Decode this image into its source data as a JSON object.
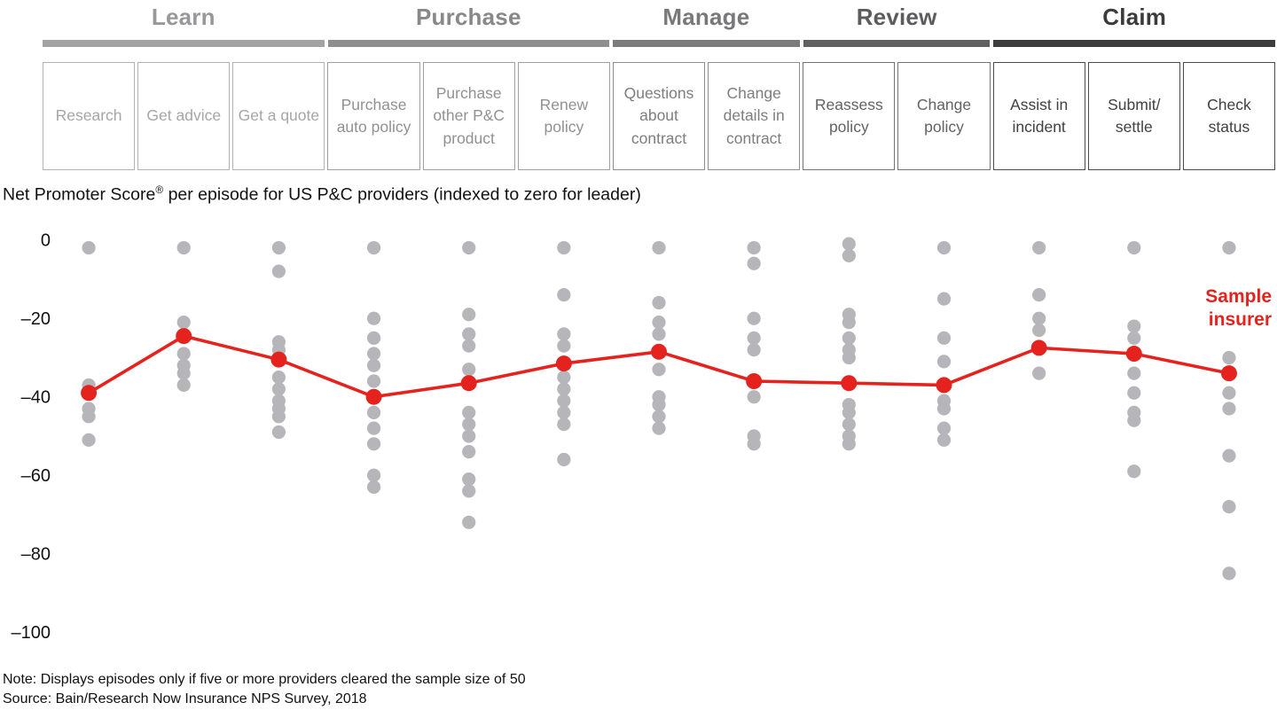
{
  "header": {
    "stages": [
      {
        "label": "Learn",
        "episode_count": 3,
        "label_color": "#98989b",
        "bar_color": "#a2a2a5",
        "box_text_color": "#a6a6a9",
        "box_border_color": "#b2b2b4"
      },
      {
        "label": "Purchase",
        "episode_count": 3,
        "label_color": "#88888b",
        "bar_color": "#8e8e91",
        "box_text_color": "#919194",
        "box_border_color": "#a0a0a3"
      },
      {
        "label": "Manage",
        "episode_count": 2,
        "label_color": "#78787b",
        "bar_color": "#7b7b7e",
        "box_text_color": "#7e7e81",
        "box_border_color": "#8e8e91"
      },
      {
        "label": "Review",
        "episode_count": 2,
        "label_color": "#5c5c5f",
        "bar_color": "#606063",
        "box_text_color": "#636366",
        "box_border_color": "#737376"
      },
      {
        "label": "Claim",
        "episode_count": 3,
        "label_color": "#3b3b3d",
        "bar_color": "#3d3d3f",
        "box_text_color": "#414143",
        "box_border_color": "#4b4b4d"
      }
    ]
  },
  "title": {
    "pre": "Net Promoter Score",
    "sup": "®",
    "post": " per episode for US P&C providers (indexed to zero for leader)"
  },
  "annotation": {
    "line1": "Sample",
    "line2": "insurer",
    "color": "#e4231f"
  },
  "colors": {
    "sample_red": "#e4231f",
    "provider_gray": "#b6b6ba"
  },
  "notes": {
    "note": "Note: Displays episodes only if five or more providers cleared the sample size of 50",
    "source": "Source: Bain/Research Now Insurance NPS Survey, 2018"
  },
  "chart_data": {
    "type": "scatter",
    "title": "Net Promoter Score® per episode for US P&C providers (indexed to zero for leader)",
    "xlabel": "",
    "ylabel": "",
    "ylim": [
      -100,
      0
    ],
    "yticks": [
      0,
      -20,
      -40,
      -60,
      -80,
      -100
    ],
    "ytick_labels": [
      "0",
      "–20",
      "–40",
      "–60",
      "–80",
      "–100"
    ],
    "grid": false,
    "legend_position": "right-annotation",
    "categories": [
      "Research",
      "Get advice",
      "Get a quote",
      "Purchase auto policy",
      "Purchase other P&C product",
      "Renew policy",
      "Questions about contract",
      "Change details in contract",
      "Reassess policy",
      "Change policy",
      "Assist in incident",
      "Submit/ settle",
      "Check status"
    ],
    "stage_of_category": [
      "Learn",
      "Learn",
      "Learn",
      "Purchase",
      "Purchase",
      "Purchase",
      "Manage",
      "Manage",
      "Review",
      "Review",
      "Claim",
      "Claim",
      "Claim"
    ],
    "provider_dots": [
      [
        -2,
        -37,
        -43,
        -45,
        -51
      ],
      [
        -2,
        -21,
        -29,
        -32,
        -34,
        -37
      ],
      [
        -2,
        -8,
        -26,
        -28,
        -35,
        -38,
        -41,
        -43,
        -45,
        -49
      ],
      [
        -2,
        -20,
        -25,
        -29,
        -32,
        -36,
        -44,
        -48,
        -52,
        -60,
        -63
      ],
      [
        -2,
        -19,
        -24,
        -27,
        -33,
        -44,
        -47,
        -50,
        -54,
        -61,
        -64,
        -72
      ],
      [
        -2,
        -14,
        -24,
        -27,
        -35,
        -38,
        -41,
        -44,
        -47,
        -56
      ],
      [
        -2,
        -16,
        -21,
        -24,
        -33,
        -40,
        -42,
        -45,
        -48
      ],
      [
        -2,
        -6,
        -20,
        -25,
        -28,
        -40,
        -50,
        -52
      ],
      [
        -1,
        -4,
        -19,
        -21,
        -25,
        -28,
        -30,
        -42,
        -44,
        -47,
        -50,
        -52
      ],
      [
        -2,
        -15,
        -25,
        -31,
        -41,
        -43,
        -48,
        -51
      ],
      [
        -2,
        -14,
        -20,
        -23,
        -34
      ],
      [
        -2,
        -22,
        -25,
        -34,
        -39,
        -44,
        -46,
        -59
      ],
      [
        -2,
        -30,
        -39,
        -43,
        -55,
        -68,
        -85
      ]
    ],
    "series": [
      {
        "name": "Sample insurer",
        "type": "line-with-markers",
        "color": "#e4231f",
        "values": [
          -39,
          -24.5,
          -30.5,
          -40,
          -36.5,
          -31.5,
          -28.5,
          -36,
          -36.5,
          -37,
          -27.5,
          -29,
          -34
        ]
      }
    ]
  }
}
